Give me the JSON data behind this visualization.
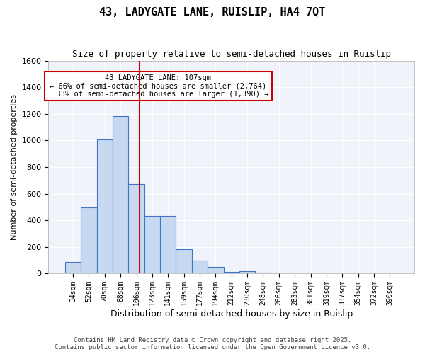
{
  "title": "43, LADYGATE LANE, RUISLIP, HA4 7QT",
  "subtitle": "Size of property relative to semi-detached houses in Ruislip",
  "xlabel": "Distribution of semi-detached houses by size in Ruislip",
  "ylabel": "Number of semi-detached properties",
  "bin_labels": [
    "34sqm",
    "52sqm",
    "70sqm",
    "88sqm",
    "106sqm",
    "123sqm",
    "141sqm",
    "159sqm",
    "177sqm",
    "194sqm",
    "212sqm",
    "230sqm",
    "248sqm",
    "266sqm",
    "283sqm",
    "301sqm",
    "319sqm",
    "337sqm",
    "354sqm",
    "372sqm",
    "390sqm"
  ],
  "bar_heights": [
    88,
    497,
    1008,
    1185,
    672,
    432,
    432,
    185,
    97,
    52,
    15,
    18,
    10,
    0,
    0,
    0,
    0,
    0,
    0,
    0,
    0
  ],
  "bar_color": "#c6d9f0",
  "bar_edge_color": "#4472c4",
  "property_label": "43 LADYGATE LANE: 107sqm",
  "pct_smaller": 66,
  "count_smaller": 2764,
  "pct_larger": 33,
  "count_larger": 1390,
  "vline_x_index": 4.18,
  "ylim": [
    0,
    1600
  ],
  "yticks": [
    0,
    200,
    400,
    600,
    800,
    1000,
    1200,
    1400,
    1600
  ],
  "footer_line1": "Contains HM Land Registry data © Crown copyright and database right 2025.",
  "footer_line2": "Contains public sector information licensed under the Open Government Licence v3.0.",
  "bg_color": "#f0f4fa",
  "annotation_box_color": "#cc0000",
  "vline_color": "#cc0000"
}
